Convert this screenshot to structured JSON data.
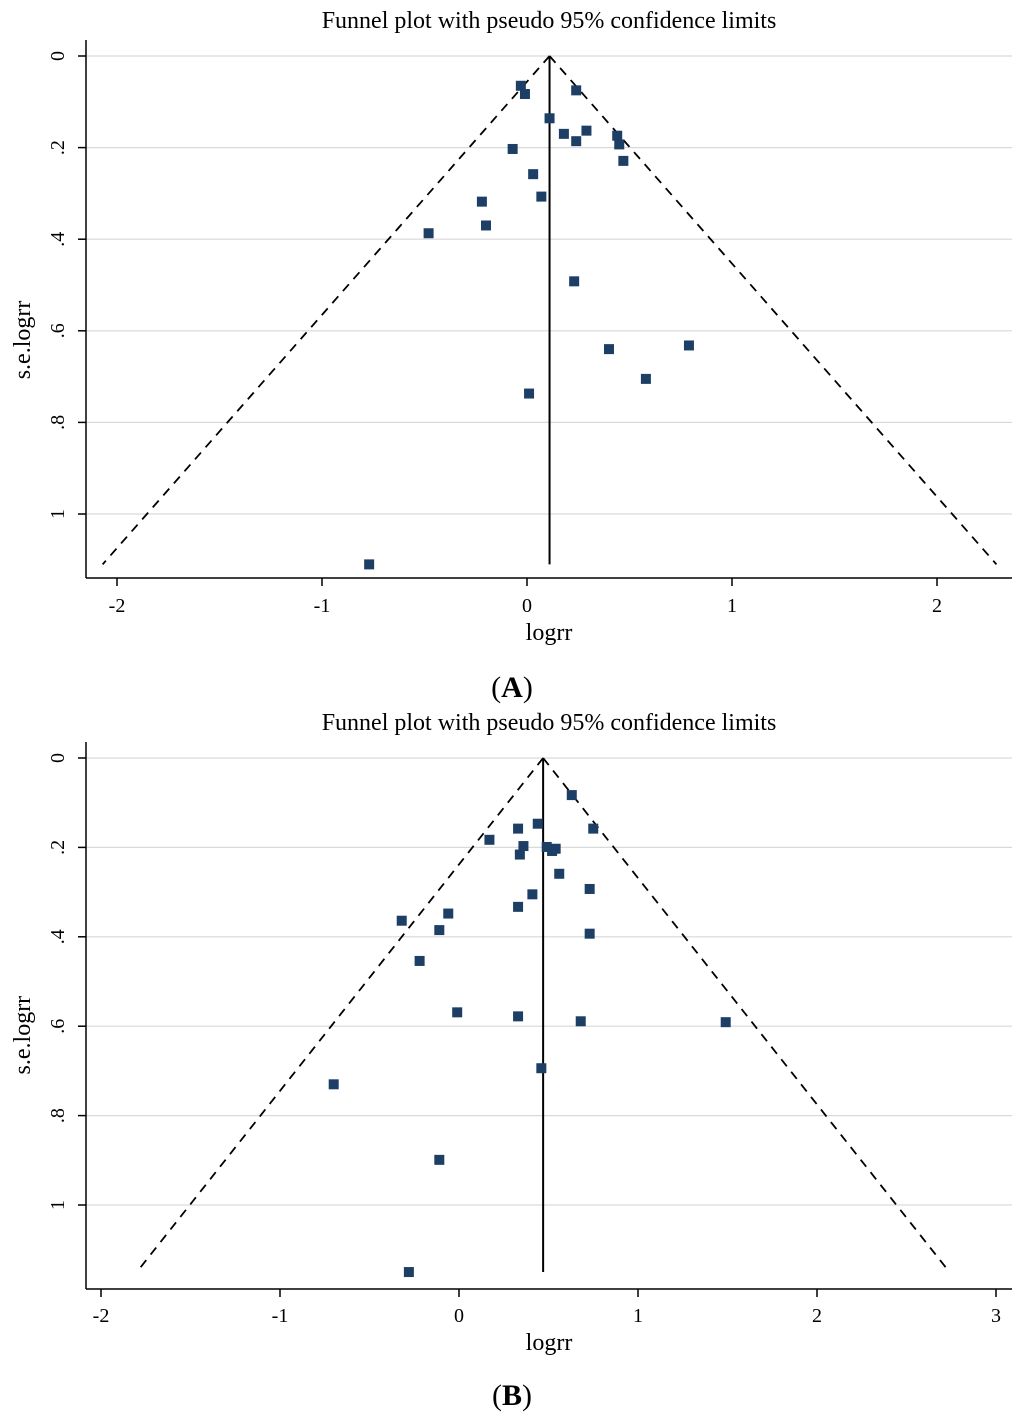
{
  "chart_data": [
    {
      "type": "scatter",
      "panel": "A",
      "panel_label": "A",
      "title": "Funnel plot with pseudo 95% confidence limits",
      "xlabel": "logrr",
      "ylabel": "s.e.logrr",
      "xlim": [
        -2.05,
        2.3
      ],
      "ylim": [
        1.11,
        0
      ],
      "xticks": [
        -2,
        -1,
        0,
        1,
        2
      ],
      "xtick_labels": [
        "-2",
        "-1",
        "0",
        "1",
        "2"
      ],
      "yticks": [
        0,
        0.2,
        0.4,
        0.6,
        0.8,
        1
      ],
      "ytick_labels": [
        "0",
        ".2",
        ".4",
        ".6",
        ".8",
        "1"
      ],
      "y_reversed": true,
      "grid": true,
      "pooled_estimate": 0.11,
      "pseudo_ci_bounds": {
        "apex": [
          0.11,
          0
        ],
        "bottom_left": [
          -2.07,
          1.11
        ],
        "bottom_right": [
          2.29,
          1.11
        ]
      },
      "points": [
        {
          "x": -0.03,
          "y": 0.065
        },
        {
          "x": -0.01,
          "y": 0.083
        },
        {
          "x": 0.24,
          "y": 0.075
        },
        {
          "x": 0.11,
          "y": 0.136
        },
        {
          "x": 0.18,
          "y": 0.17
        },
        {
          "x": 0.29,
          "y": 0.163
        },
        {
          "x": 0.24,
          "y": 0.186
        },
        {
          "x": 0.44,
          "y": 0.174
        },
        {
          "x": 0.45,
          "y": 0.193
        },
        {
          "x": -0.07,
          "y": 0.203
        },
        {
          "x": 0.47,
          "y": 0.229
        },
        {
          "x": 0.03,
          "y": 0.258
        },
        {
          "x": 0.07,
          "y": 0.307
        },
        {
          "x": -0.22,
          "y": 0.318
        },
        {
          "x": -0.2,
          "y": 0.37
        },
        {
          "x": -0.48,
          "y": 0.387
        },
        {
          "x": 0.23,
          "y": 0.492
        },
        {
          "x": 0.4,
          "y": 0.64
        },
        {
          "x": 0.79,
          "y": 0.632
        },
        {
          "x": 0.58,
          "y": 0.705
        },
        {
          "x": 0.01,
          "y": 0.737
        },
        {
          "x": -0.77,
          "y": 1.11
        }
      ]
    },
    {
      "type": "scatter",
      "panel": "B",
      "panel_label": "B",
      "title": "Funnel plot with pseudo 95% confidence limits",
      "xlabel": "logrr",
      "ylabel": "s.e.logrr",
      "xlim": [
        -2.05,
        3
      ],
      "ylim": [
        1.15,
        0
      ],
      "xticks": [
        -2,
        -1,
        0,
        1,
        2,
        3
      ],
      "xtick_labels": [
        "-2",
        "-1",
        "0",
        "1",
        "2",
        "3"
      ],
      "yticks": [
        0,
        0.2,
        0.4,
        0.6,
        0.8,
        1
      ],
      "ytick_labels": [
        "0",
        ".2",
        ".4",
        ".6",
        ".8",
        "1"
      ],
      "y_reversed": true,
      "grid": true,
      "pooled_estimate": 0.47,
      "pseudo_ci_bounds": {
        "apex": [
          0.47,
          0
        ],
        "bottom_left": [
          -1.8,
          1.15
        ],
        "bottom_right": [
          2.74,
          1.15
        ]
      },
      "points": [
        {
          "x": 0.63,
          "y": 0.083
        },
        {
          "x": 0.44,
          "y": 0.147
        },
        {
          "x": 0.33,
          "y": 0.158
        },
        {
          "x": 0.75,
          "y": 0.158
        },
        {
          "x": 0.17,
          "y": 0.183
        },
        {
          "x": 0.36,
          "y": 0.197
        },
        {
          "x": 0.49,
          "y": 0.199
        },
        {
          "x": 0.54,
          "y": 0.203
        },
        {
          "x": 0.52,
          "y": 0.208
        },
        {
          "x": 0.34,
          "y": 0.216
        },
        {
          "x": 0.56,
          "y": 0.259
        },
        {
          "x": 0.73,
          "y": 0.293
        },
        {
          "x": 0.41,
          "y": 0.305
        },
        {
          "x": 0.33,
          "y": 0.333
        },
        {
          "x": -0.06,
          "y": 0.348
        },
        {
          "x": -0.32,
          "y": 0.364
        },
        {
          "x": -0.11,
          "y": 0.385
        },
        {
          "x": 0.73,
          "y": 0.393
        },
        {
          "x": -0.22,
          "y": 0.454
        },
        {
          "x": -0.01,
          "y": 0.569
        },
        {
          "x": 0.33,
          "y": 0.578
        },
        {
          "x": 0.68,
          "y": 0.589
        },
        {
          "x": 1.49,
          "y": 0.591
        },
        {
          "x": 0.46,
          "y": 0.694
        },
        {
          "x": -0.7,
          "y": 0.73
        },
        {
          "x": -0.11,
          "y": 0.899
        },
        {
          "x": -0.28,
          "y": 1.15
        }
      ]
    }
  ]
}
